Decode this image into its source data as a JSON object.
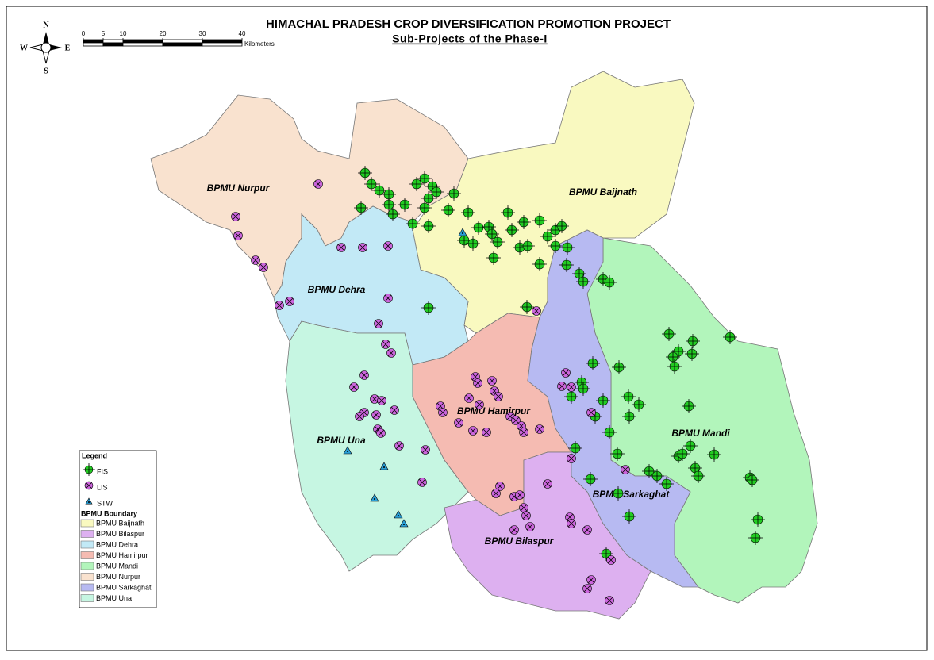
{
  "header": {
    "title": "HIMACHAL PRADESH CROP DIVERSIFICATION PROMOTION PROJECT",
    "subtitle": "Sub-Projects of the Phase-I"
  },
  "compass": {
    "north": "N",
    "south": "S",
    "east": "E",
    "west": "W"
  },
  "scale_bar": {
    "ticks": [
      0,
      5,
      10,
      20,
      30,
      40
    ],
    "unit": "Kilometers"
  },
  "regions": [
    {
      "name": "BPMU Baijnath",
      "color": "#f9f9c0"
    },
    {
      "name": "BPMU Bilaspur",
      "color": "#ddb0f0"
    },
    {
      "name": "BPMU Dehra",
      "color": "#c2e9f6"
    },
    {
      "name": "BPMU Hamirpur",
      "color": "#f5bbb2"
    },
    {
      "name": "BPMU Mandi",
      "color": "#b2f5bb"
    },
    {
      "name": "BPMU Nurpur",
      "color": "#f9e2cf"
    },
    {
      "name": "BPMU Sarkaghat",
      "color": "#b7baf2"
    },
    {
      "name": "BPMU Una",
      "color": "#c6f6e2"
    }
  ],
  "legend": {
    "title": "Legend",
    "boundary_title": "BPMU Boundary",
    "symbols": [
      {
        "label": "FIS",
        "color": "#22cc22"
      },
      {
        "label": "LIS",
        "color": "#cc66dd"
      },
      {
        "label": "STW",
        "color": "#2a9fd6"
      }
    ]
  }
}
